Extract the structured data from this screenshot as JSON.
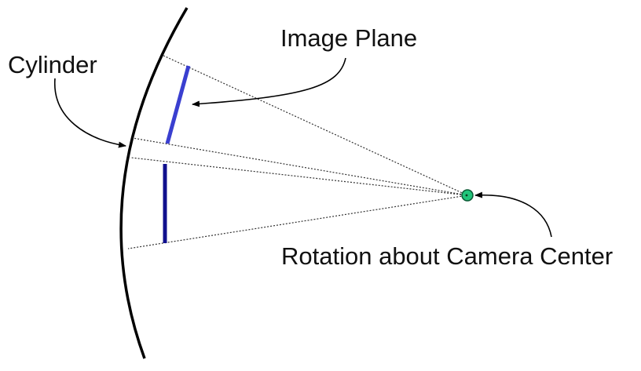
{
  "labels": {
    "image_plane": "Image Plane",
    "cylinder": "Cylinder",
    "rotation": "Rotation about Camera Center"
  },
  "colors": {
    "cylinder_stroke": "#000000",
    "image_plane_light": "#3a3fd0",
    "image_plane_dark": "#10108e",
    "camera_center_fill": "#22c47a",
    "camera_center_stroke": "#0a5a35",
    "ray": "#333333",
    "arrow": "#000000"
  },
  "icons": {
    "camera_center": "circle-dot"
  }
}
